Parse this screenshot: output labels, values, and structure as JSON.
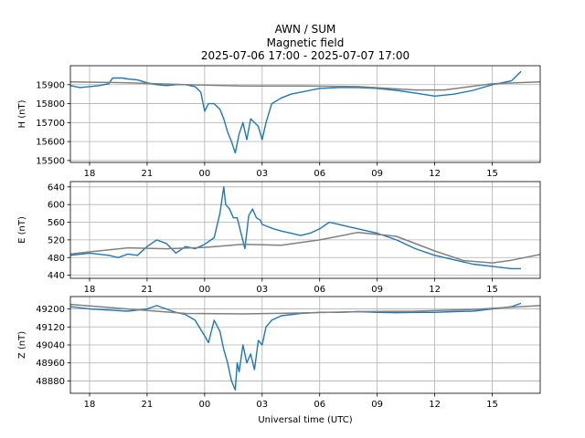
{
  "figure": {
    "title_lines": [
      "AWN / SUM",
      "Magnetic field",
      "2025-07-06 17:00 - 2025-07-07 17:00"
    ],
    "xlabel": "Universal time (UTC)"
  },
  "colors": {
    "data_line": "#1f77b4",
    "baseline": "#808080",
    "grid": "#b0b0b0",
    "axes": "#000000"
  },
  "chart_data": [
    {
      "type": "line",
      "ylabel": "H (nT)",
      "xlim_hours": [
        -7,
        17.5
      ],
      "x_ticks": [
        "18",
        "21",
        "00",
        "03",
        "06",
        "09",
        "12",
        "15"
      ],
      "x_tick_hours": [
        -6,
        -3,
        0,
        3,
        6,
        9,
        12,
        15
      ],
      "ylim": [
        15490,
        16000
      ],
      "yticks": [
        15500,
        15600,
        15700,
        15800,
        15900
      ],
      "grid": true,
      "series": [
        {
          "role": "data",
          "x": [
            -7,
            -6.5,
            -6,
            -5.5,
            -5,
            -4.8,
            -4.3,
            -4,
            -3.5,
            -3,
            -2.5,
            -2,
            -1.5,
            -1,
            -0.5,
            -0.2,
            0,
            0.2,
            0.5,
            0.8,
            1,
            1.2,
            1.4,
            1.6,
            1.8,
            2,
            2.2,
            2.4,
            2.6,
            2.8,
            3,
            3.2,
            3.5,
            4,
            4.5,
            5,
            5.5,
            6,
            7,
            8,
            9,
            10,
            11,
            12,
            13,
            14,
            15,
            16,
            16.5
          ],
          "values": [
            15895,
            15885,
            15890,
            15895,
            15905,
            15935,
            15935,
            15930,
            15925,
            15910,
            15900,
            15895,
            15900,
            15900,
            15890,
            15860,
            15760,
            15800,
            15800,
            15770,
            15720,
            15650,
            15600,
            15540,
            15640,
            15700,
            15610,
            15720,
            15700,
            15680,
            15610,
            15700,
            15800,
            15830,
            15850,
            15860,
            15870,
            15880,
            15885,
            15885,
            15880,
            15870,
            15855,
            15840,
            15850,
            15870,
            15900,
            15920,
            15970
          ]
        },
        {
          "role": "baseline",
          "x": [
            -7,
            -4,
            -1,
            2,
            5,
            8,
            11,
            12.5,
            15,
            17.5
          ],
          "values": [
            15915,
            15910,
            15900,
            15893,
            15893,
            15890,
            15872,
            15872,
            15905,
            15915
          ]
        }
      ]
    },
    {
      "type": "line",
      "ylabel": "E (nT)",
      "xlim_hours": [
        -7,
        17.5
      ],
      "x_ticks": [
        "18",
        "21",
        "00",
        "03",
        "06",
        "09",
        "12",
        "15"
      ],
      "x_tick_hours": [
        -6,
        -3,
        0,
        3,
        6,
        9,
        12,
        15
      ],
      "ylim": [
        433,
        652
      ],
      "yticks": [
        440,
        480,
        520,
        560,
        600,
        640
      ],
      "grid": true,
      "series": [
        {
          "role": "data",
          "x": [
            -7,
            -6,
            -5,
            -4.5,
            -4,
            -3.5,
            -3,
            -2.5,
            -2,
            -1.5,
            -1,
            -0.5,
            0,
            0.5,
            0.8,
            1,
            1.1,
            1.3,
            1.5,
            1.7,
            1.9,
            2.1,
            2.3,
            2.5,
            2.7,
            2.9,
            3,
            3.3,
            3.6,
            4,
            4.5,
            5,
            5.5,
            6,
            6.5,
            7,
            7.5,
            8,
            9,
            10,
            11,
            12,
            13,
            14,
            15,
            16,
            16.5
          ],
          "values": [
            485,
            490,
            485,
            480,
            488,
            485,
            505,
            520,
            512,
            490,
            505,
            500,
            510,
            525,
            580,
            640,
            600,
            590,
            570,
            570,
            535,
            500,
            575,
            590,
            570,
            565,
            555,
            550,
            545,
            540,
            535,
            530,
            535,
            545,
            560,
            555,
            550,
            545,
            535,
            520,
            500,
            485,
            475,
            465,
            460,
            455,
            455
          ]
        },
        {
          "role": "baseline",
          "x": [
            -7,
            -6,
            -4,
            -2,
            0,
            2,
            4,
            6,
            8,
            10,
            12,
            13.5,
            15,
            16,
            17.5
          ],
          "values": [
            488,
            493,
            502,
            500,
            503,
            510,
            508,
            520,
            537,
            528,
            495,
            473,
            468,
            474,
            487
          ]
        }
      ]
    },
    {
      "type": "line",
      "ylabel": "Z (nT)",
      "xlim_hours": [
        -7,
        17.5
      ],
      "x_ticks": [
        "18",
        "21",
        "00",
        "03",
        "06",
        "09",
        "12",
        "15"
      ],
      "x_tick_hours": [
        -6,
        -3,
        0,
        3,
        6,
        9,
        12,
        15
      ],
      "ylim": [
        48825,
        49255
      ],
      "yticks": [
        48880,
        48960,
        49040,
        49120,
        49200
      ],
      "grid": true,
      "series": [
        {
          "role": "data",
          "x": [
            -7,
            -6,
            -5,
            -4,
            -3,
            -2.5,
            -2,
            -1.5,
            -1,
            -0.5,
            0,
            0.2,
            0.5,
            0.8,
            1,
            1.2,
            1.4,
            1.6,
            1.7,
            1.8,
            2,
            2.2,
            2.4,
            2.6,
            2.8,
            3,
            3.2,
            3.5,
            4,
            5,
            6,
            7,
            8,
            9,
            10,
            11,
            12,
            13,
            14,
            15,
            16,
            16.5
          ],
          "values": [
            49210,
            49200,
            49195,
            49190,
            49200,
            49215,
            49200,
            49185,
            49175,
            49150,
            49080,
            49050,
            49150,
            49100,
            49020,
            48960,
            48880,
            48840,
            48960,
            48920,
            49040,
            48960,
            49000,
            48930,
            49060,
            49040,
            49120,
            49150,
            49170,
            49180,
            49185,
            49185,
            49188,
            49185,
            49183,
            49185,
            49185,
            49188,
            49190,
            49200,
            49210,
            49225
          ]
        },
        {
          "role": "baseline",
          "x": [
            -7,
            -4,
            -1,
            2,
            5,
            8,
            11,
            14,
            17.5
          ],
          "values": [
            49220,
            49200,
            49180,
            49178,
            49182,
            49188,
            49190,
            49198,
            49215
          ]
        }
      ]
    }
  ]
}
